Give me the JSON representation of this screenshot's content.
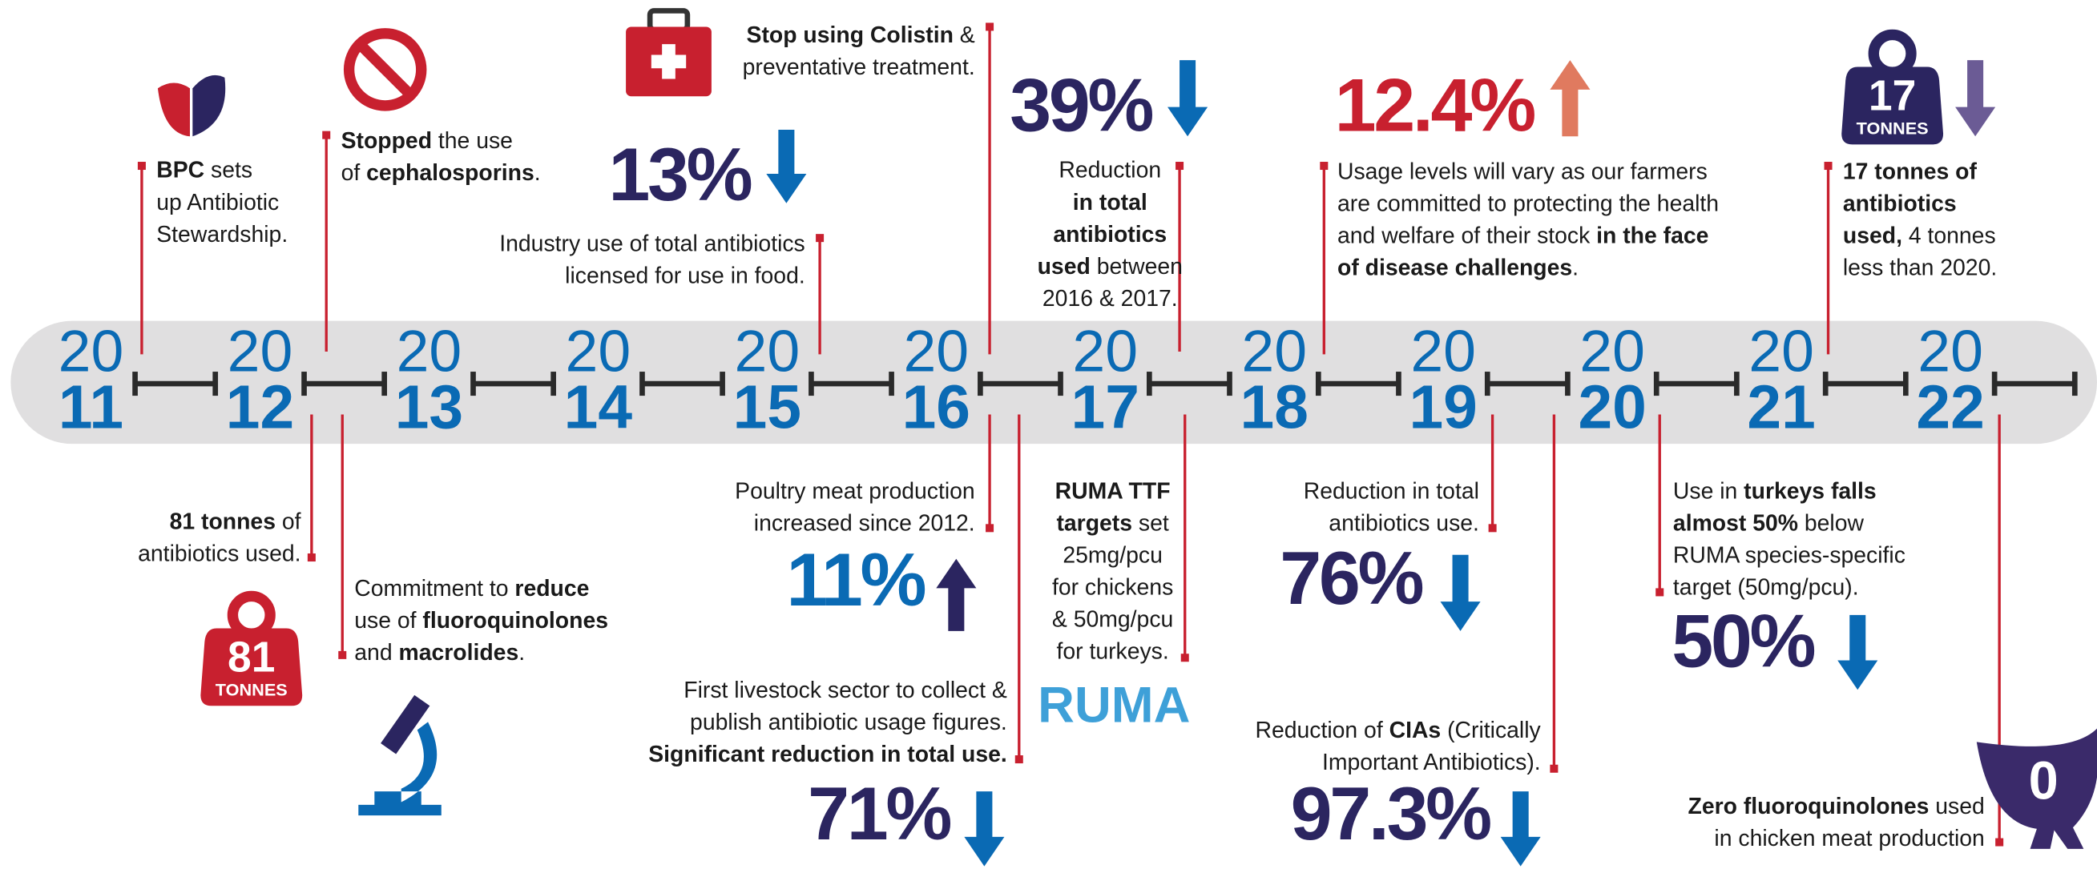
{
  "years": [
    {
      "top": "20",
      "bottom": "11"
    },
    {
      "top": "20",
      "bottom": "12"
    },
    {
      "top": "20",
      "bottom": "13"
    },
    {
      "top": "20",
      "bottom": "14"
    },
    {
      "top": "20",
      "bottom": "15"
    },
    {
      "top": "20",
      "bottom": "16"
    },
    {
      "top": "20",
      "bottom": "17"
    },
    {
      "top": "20",
      "bottom": "18"
    },
    {
      "top": "20",
      "bottom": "19"
    },
    {
      "top": "20",
      "bottom": "20"
    },
    {
      "top": "20",
      "bottom": "21"
    },
    {
      "top": "20",
      "bottom": "22"
    }
  ],
  "annotations": [
    {
      "lines": [
        [
          {
            "text": "BPC",
            "bold": true
          },
          {
            "text": " sets"
          }
        ],
        [
          {
            "text": "up Antibiotic"
          }
        ],
        [
          {
            "text": "Stewardship."
          }
        ]
      ]
    },
    {
      "lines": [
        [
          {
            "text": "Stopped",
            "bold": true
          },
          {
            "text": " the use"
          }
        ],
        [
          {
            "text": "of "
          },
          {
            "text": "cephalosporins",
            "bold": true
          },
          {
            "text": "."
          }
        ]
      ]
    },
    {
      "stat": "13%",
      "lines": [
        [
          {
            "text": "Industry use of total antibiotics"
          }
        ],
        [
          {
            "text": "licensed for use in food."
          }
        ]
      ]
    },
    {
      "lines": [
        [
          {
            "text": "Stop using Colistin",
            "bold": true
          },
          {
            "text": " &"
          }
        ],
        [
          {
            "text": "preventative treatment."
          }
        ]
      ]
    },
    {
      "stat": "39%",
      "lines": [
        [
          {
            "text": "Reduction"
          }
        ],
        [
          {
            "text": "in total",
            "bold": true
          }
        ],
        [
          {
            "text": "antibiotics",
            "bold": true
          }
        ],
        [
          {
            "text": "used",
            "bold": true
          },
          {
            "text": " between"
          }
        ],
        [
          {
            "text": "2016 & 2017."
          }
        ]
      ]
    },
    {
      "stat": "12.4%",
      "lines": [
        [
          {
            "text": "Usage levels will vary as our farmers"
          }
        ],
        [
          {
            "text": "are committed to protecting the health"
          }
        ],
        [
          {
            "text": "and welfare of their stock "
          },
          {
            "text": "in the face",
            "bold": true
          }
        ],
        [
          {
            "text": "of disease challenges",
            "bold": true
          },
          {
            "text": "."
          }
        ]
      ]
    },
    {
      "badge": {
        "number": "17",
        "unit": "TONNES"
      },
      "lines": [
        [
          {
            "text": "17 tonnes of",
            "bold": true
          }
        ],
        [
          {
            "text": "antibiotics",
            "bold": true
          }
        ],
        [
          {
            "text": "used,",
            "bold": true
          },
          {
            "text": " 4 tonnes"
          }
        ],
        [
          {
            "text": "less than 2020."
          }
        ]
      ]
    },
    {
      "badge": {
        "number": "81",
        "unit": "TONNES"
      },
      "lines": [
        [
          {
            "text": "81 tonnes",
            "bold": true
          },
          {
            "text": " of"
          }
        ],
        [
          {
            "text": "antibiotics used."
          }
        ]
      ]
    },
    {
      "lines": [
        [
          {
            "text": "Commitment to "
          },
          {
            "text": "reduce",
            "bold": true
          }
        ],
        [
          {
            "text": "use of "
          },
          {
            "text": "fluoroquinolones",
            "bold": true
          }
        ],
        [
          {
            "text": "and "
          },
          {
            "text": "macrolides",
            "bold": true
          },
          {
            "text": "."
          }
        ]
      ]
    },
    {
      "stat": "11%",
      "lines": [
        [
          {
            "text": "Poultry meat production"
          }
        ],
        [
          {
            "text": "increased since 2012."
          }
        ]
      ]
    },
    {
      "stat": "71%",
      "lines": [
        [
          {
            "text": "First livestock sector to collect &"
          }
        ],
        [
          {
            "text": "publish antibiotic usage figures."
          }
        ],
        [
          {
            "text": "Significant reduction in total use.",
            "bold": true
          }
        ]
      ]
    },
    {
      "logo": "RUMA",
      "lines": [
        [
          {
            "text": "RUMA TTF",
            "bold": true
          }
        ],
        [
          {
            "text": "targets",
            "bold": true
          },
          {
            "text": " set"
          }
        ],
        [
          {
            "text": "25mg/pcu"
          }
        ],
        [
          {
            "text": "for chickens"
          }
        ],
        [
          {
            "text": "& 50mg/pcu"
          }
        ],
        [
          {
            "text": "for turkeys."
          }
        ]
      ]
    },
    {
      "stat": "76%",
      "lines": [
        [
          {
            "text": "Reduction in total"
          }
        ],
        [
          {
            "text": "antibiotics use."
          }
        ]
      ]
    },
    {
      "stat": "97.3%",
      "lines": [
        [
          {
            "text": "Reduction of "
          },
          {
            "text": "CIAs",
            "bold": true
          },
          {
            "text": " (Critically"
          }
        ],
        [
          {
            "text": "Important Antibiotics)."
          }
        ]
      ]
    },
    {
      "stat": "50%",
      "lines": [
        [
          {
            "text": "Use in "
          },
          {
            "text": "turkeys falls",
            "bold": true
          }
        ],
        [
          {
            "text": "almost 50%",
            "bold": true
          },
          {
            "text": " below"
          }
        ],
        [
          {
            "text": "RUMA species-specific"
          }
        ],
        [
          {
            "text": "target (50mg/pcu)."
          }
        ]
      ]
    },
    {
      "badge": {
        "number": "0"
      },
      "lines": [
        [
          {
            "text": "Zero fluoroquinolones",
            "bold": true
          },
          {
            "text": " used"
          }
        ],
        [
          {
            "text": "in chicken meat production"
          }
        ]
      ]
    }
  ]
}
